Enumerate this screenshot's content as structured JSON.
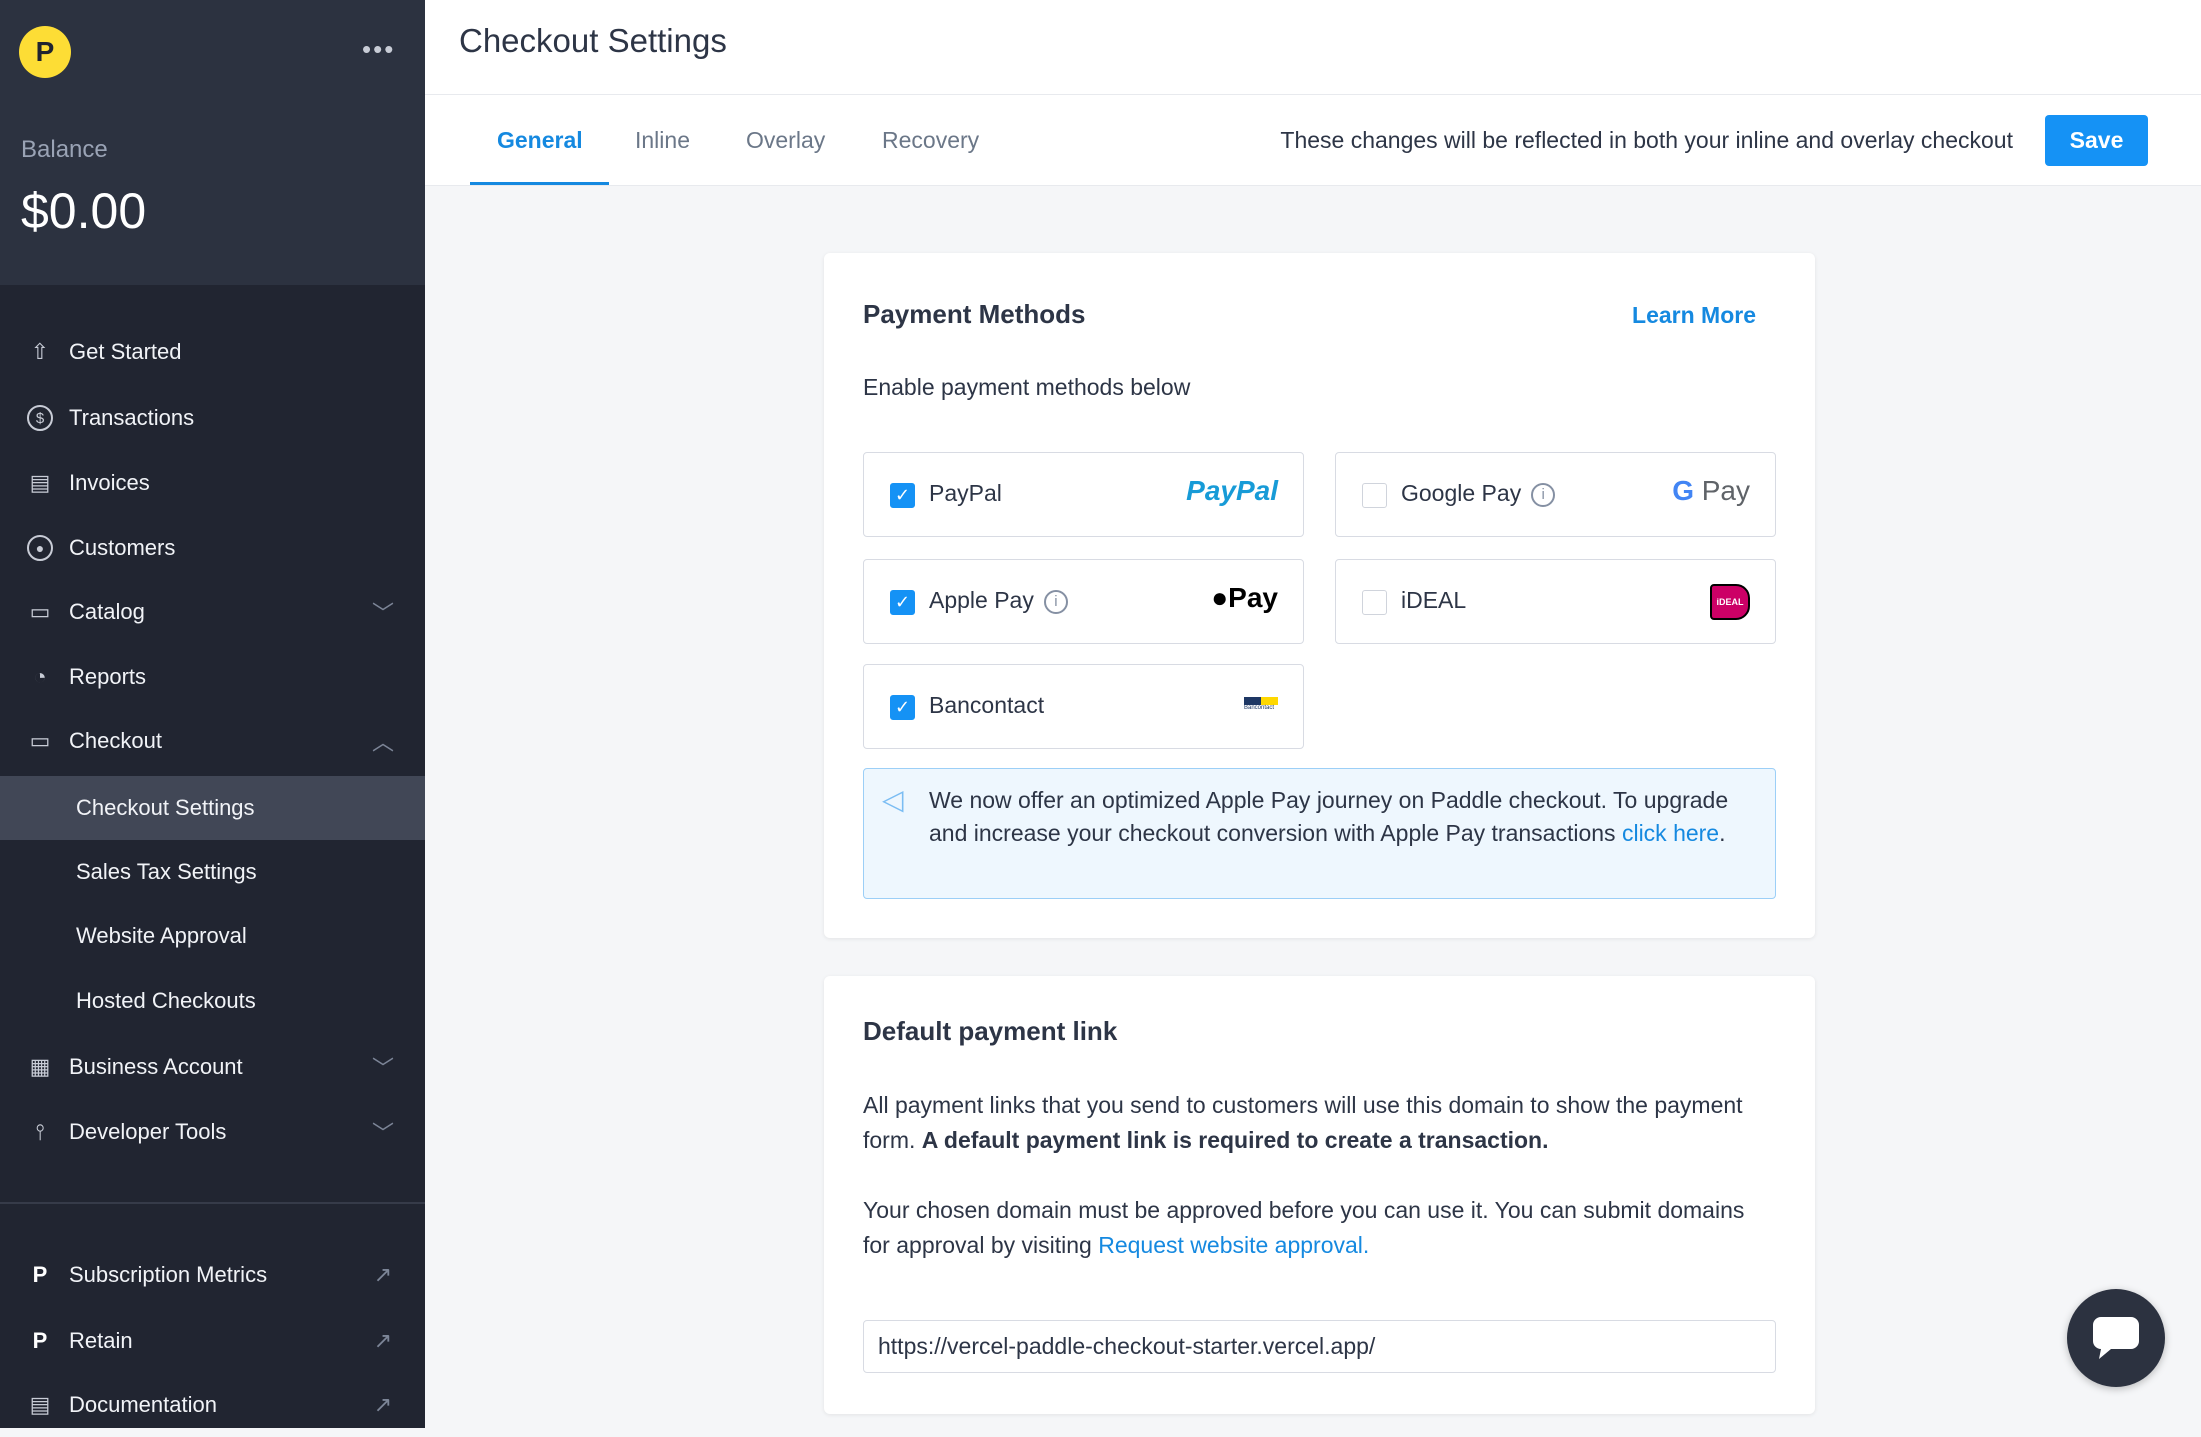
{
  "sidebar": {
    "balance_label": "Balance",
    "balance_value": "$0.00",
    "items": [
      {
        "label": "Get Started",
        "icon": "rocket-icon"
      },
      {
        "label": "Transactions",
        "icon": "dollar-circle-icon"
      },
      {
        "label": "Invoices",
        "icon": "invoice-icon"
      },
      {
        "label": "Customers",
        "icon": "user-circle-icon"
      },
      {
        "label": "Catalog",
        "icon": "catalog-icon",
        "expandable": true
      },
      {
        "label": "Reports",
        "icon": "reports-icon"
      },
      {
        "label": "Checkout",
        "icon": "credit-card-icon",
        "expanded": true
      }
    ],
    "checkout_sub": [
      {
        "label": "Checkout Settings",
        "active": true
      },
      {
        "label": "Sales Tax Settings"
      },
      {
        "label": "Website Approval"
      },
      {
        "label": "Hosted Checkouts"
      }
    ],
    "items2": [
      {
        "label": "Business Account",
        "icon": "building-icon"
      },
      {
        "label": "Developer Tools",
        "icon": "sliders-icon"
      }
    ],
    "external": [
      {
        "label": "Subscription Metrics"
      },
      {
        "label": "Retain"
      },
      {
        "label": "Documentation"
      }
    ]
  },
  "header": {
    "title": "Checkout Settings"
  },
  "tabs": [
    "General",
    "Inline",
    "Overlay",
    "Recovery"
  ],
  "active_tab": "General",
  "notice": "These changes will be reflected in both your inline and overlay checkout",
  "save_label": "Save",
  "payment_methods": {
    "title": "Payment Methods",
    "learn_more": "Learn More",
    "subtitle": "Enable payment methods below",
    "methods": [
      {
        "label": "PayPal",
        "checked": true,
        "logo": "PayPal"
      },
      {
        "label": "Google Pay",
        "checked": false,
        "info": true,
        "logo": "Pay"
      },
      {
        "label": "Apple Pay",
        "checked": true,
        "info": true,
        "logo": "Pay"
      },
      {
        "label": "iDEAL",
        "checked": false,
        "logo": "iDEAL"
      },
      {
        "label": "Bancontact",
        "checked": true,
        "logo": "Bancontact"
      }
    ],
    "info_text": "We now offer an optimized Apple Pay journey on Paddle checkout. To upgrade and increase your checkout conversion with Apple Pay transactions ",
    "info_link": "click here",
    "info_end": "."
  },
  "default_link": {
    "title": "Default payment link",
    "p1": "All payment links that you send to customers will use this domain to show the payment form. ",
    "p1_bold": "A default payment link is required to create a transaction.",
    "p2": "Your chosen domain must be approved before you can use it. You can submit domains for approval by visiting ",
    "p2_link": "Request website approval.",
    "url": "https://vercel-paddle-checkout-starter.vercel.app/"
  },
  "colors": {
    "accent": "#1592f5",
    "sidebar": "#212531",
    "logo": "#fddd35"
  }
}
